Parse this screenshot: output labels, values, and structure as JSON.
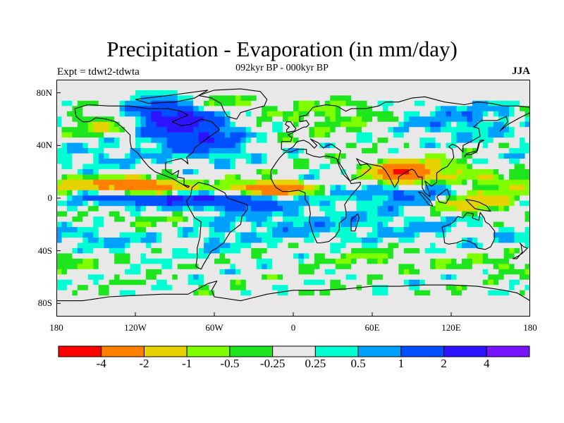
{
  "title": "Precipitation - Evaporation (in mm/day)",
  "subtitle": "092kyr BP - 000kyr BP",
  "left_label": "Expt = tdwt2-tdwta",
  "right_label": "JJA",
  "lat_ticks": [
    {
      "label": "80N",
      "lat": 80
    },
    {
      "label": "40N",
      "lat": 40
    },
    {
      "label": "0",
      "lat": 0
    },
    {
      "label": "40S",
      "lat": -40
    },
    {
      "label": "80S",
      "lat": -80
    }
  ],
  "lon_ticks": [
    {
      "label": "180",
      "lon": -180
    },
    {
      "label": "120W",
      "lon": -120
    },
    {
      "label": "60W",
      "lon": -60
    },
    {
      "label": "0",
      "lon": 0
    },
    {
      "label": "60E",
      "lon": 60
    },
    {
      "label": "120E",
      "lon": 120
    },
    {
      "label": "180",
      "lon": 180
    }
  ],
  "map_extent": {
    "lon": [
      -180,
      180
    ],
    "lat": [
      -90,
      90
    ]
  },
  "colorbar": {
    "colors": [
      "#ff0000",
      "#ff8000",
      "#e6d200",
      "#80ff00",
      "#1ee61e",
      "#e8e8e8",
      "#00ffd2",
      "#00a0ff",
      "#0050ff",
      "#2d14ff",
      "#7814ff"
    ],
    "labels": [
      "-4",
      "-2",
      "-1",
      "-0.5",
      "-0.25",
      "0.25",
      "0.5",
      "1",
      "2",
      "4"
    ]
  },
  "field_features": [
    {
      "lon": -150,
      "lat": 10,
      "sx": 25,
      "sy": 4,
      "v": -2
    },
    {
      "lon": -110,
      "lat": 8,
      "sx": 18,
      "sy": 4,
      "v": -4
    },
    {
      "lon": -140,
      "lat": 2,
      "sx": 35,
      "sy": 5,
      "v": 1
    },
    {
      "lon": -100,
      "lat": 0,
      "sx": 25,
      "sy": 4,
      "v": 2
    },
    {
      "lon": -30,
      "lat": 6,
      "sx": 25,
      "sy": 4,
      "v": -2
    },
    {
      "lon": -10,
      "lat": 8,
      "sx": 15,
      "sy": 3,
      "v": -3
    },
    {
      "lon": -40,
      "lat": -2,
      "sx": 25,
      "sy": 5,
      "v": 2
    },
    {
      "lon": 100,
      "lat": 18,
      "sx": 25,
      "sy": 7,
      "v": -2
    },
    {
      "lon": 80,
      "lat": 20,
      "sx": 12,
      "sy": 5,
      "v": -3
    },
    {
      "lon": 130,
      "lat": -2,
      "sx": 25,
      "sy": 6,
      "v": -2
    },
    {
      "lon": 90,
      "lat": 2,
      "sx": 25,
      "sy": 6,
      "v": 1.5
    },
    {
      "lon": 115,
      "lat": 8,
      "sx": 15,
      "sy": 6,
      "v": 1.2
    },
    {
      "lon": -100,
      "lat": 62,
      "sx": 20,
      "sy": 10,
      "v": 2
    },
    {
      "lon": -75,
      "lat": 55,
      "sx": 20,
      "sy": 12,
      "v": 1.5
    },
    {
      "lon": -140,
      "lat": 55,
      "sx": 25,
      "sy": 8,
      "v": -1
    },
    {
      "lon": -60,
      "lat": 72,
      "sx": 25,
      "sy": 6,
      "v": -0.8
    },
    {
      "lon": 40,
      "lat": 62,
      "sx": 35,
      "sy": 10,
      "v": -0.6
    },
    {
      "lon": 120,
      "lat": 60,
      "sx": 40,
      "sy": 10,
      "v": 0.8
    },
    {
      "lon": -150,
      "lat": 35,
      "sx": 35,
      "sy": 10,
      "v": 0.5
    },
    {
      "lon": -60,
      "lat": 40,
      "sx": 20,
      "sy": 8,
      "v": 1
    },
    {
      "lon": -150,
      "lat": -30,
      "sx": 40,
      "sy": 8,
      "v": 0.6
    },
    {
      "lon": -120,
      "lat": -18,
      "sx": 30,
      "sy": 6,
      "v": -0.5
    },
    {
      "lon": -10,
      "lat": -20,
      "sx": 35,
      "sy": 10,
      "v": 0.6
    },
    {
      "lon": 80,
      "lat": -20,
      "sx": 40,
      "sy": 10,
      "v": 0.5
    },
    {
      "lon": 60,
      "lat": -45,
      "sx": 30,
      "sy": 5,
      "v": -0.5
    },
    {
      "lon": 150,
      "lat": -50,
      "sx": 25,
      "sy": 5,
      "v": -0.4
    },
    {
      "lon": -170,
      "lat": -45,
      "sx": 20,
      "sy": 6,
      "v": -0.4
    },
    {
      "lon": -60,
      "lat": -30,
      "sx": 10,
      "sy": 10,
      "v": 0.5
    },
    {
      "lon": 20,
      "lat": 10,
      "sx": 20,
      "sy": 5,
      "v": 0.4
    },
    {
      "lon": 160,
      "lat": 10,
      "sx": 20,
      "sy": 6,
      "v": -0.6
    }
  ]
}
